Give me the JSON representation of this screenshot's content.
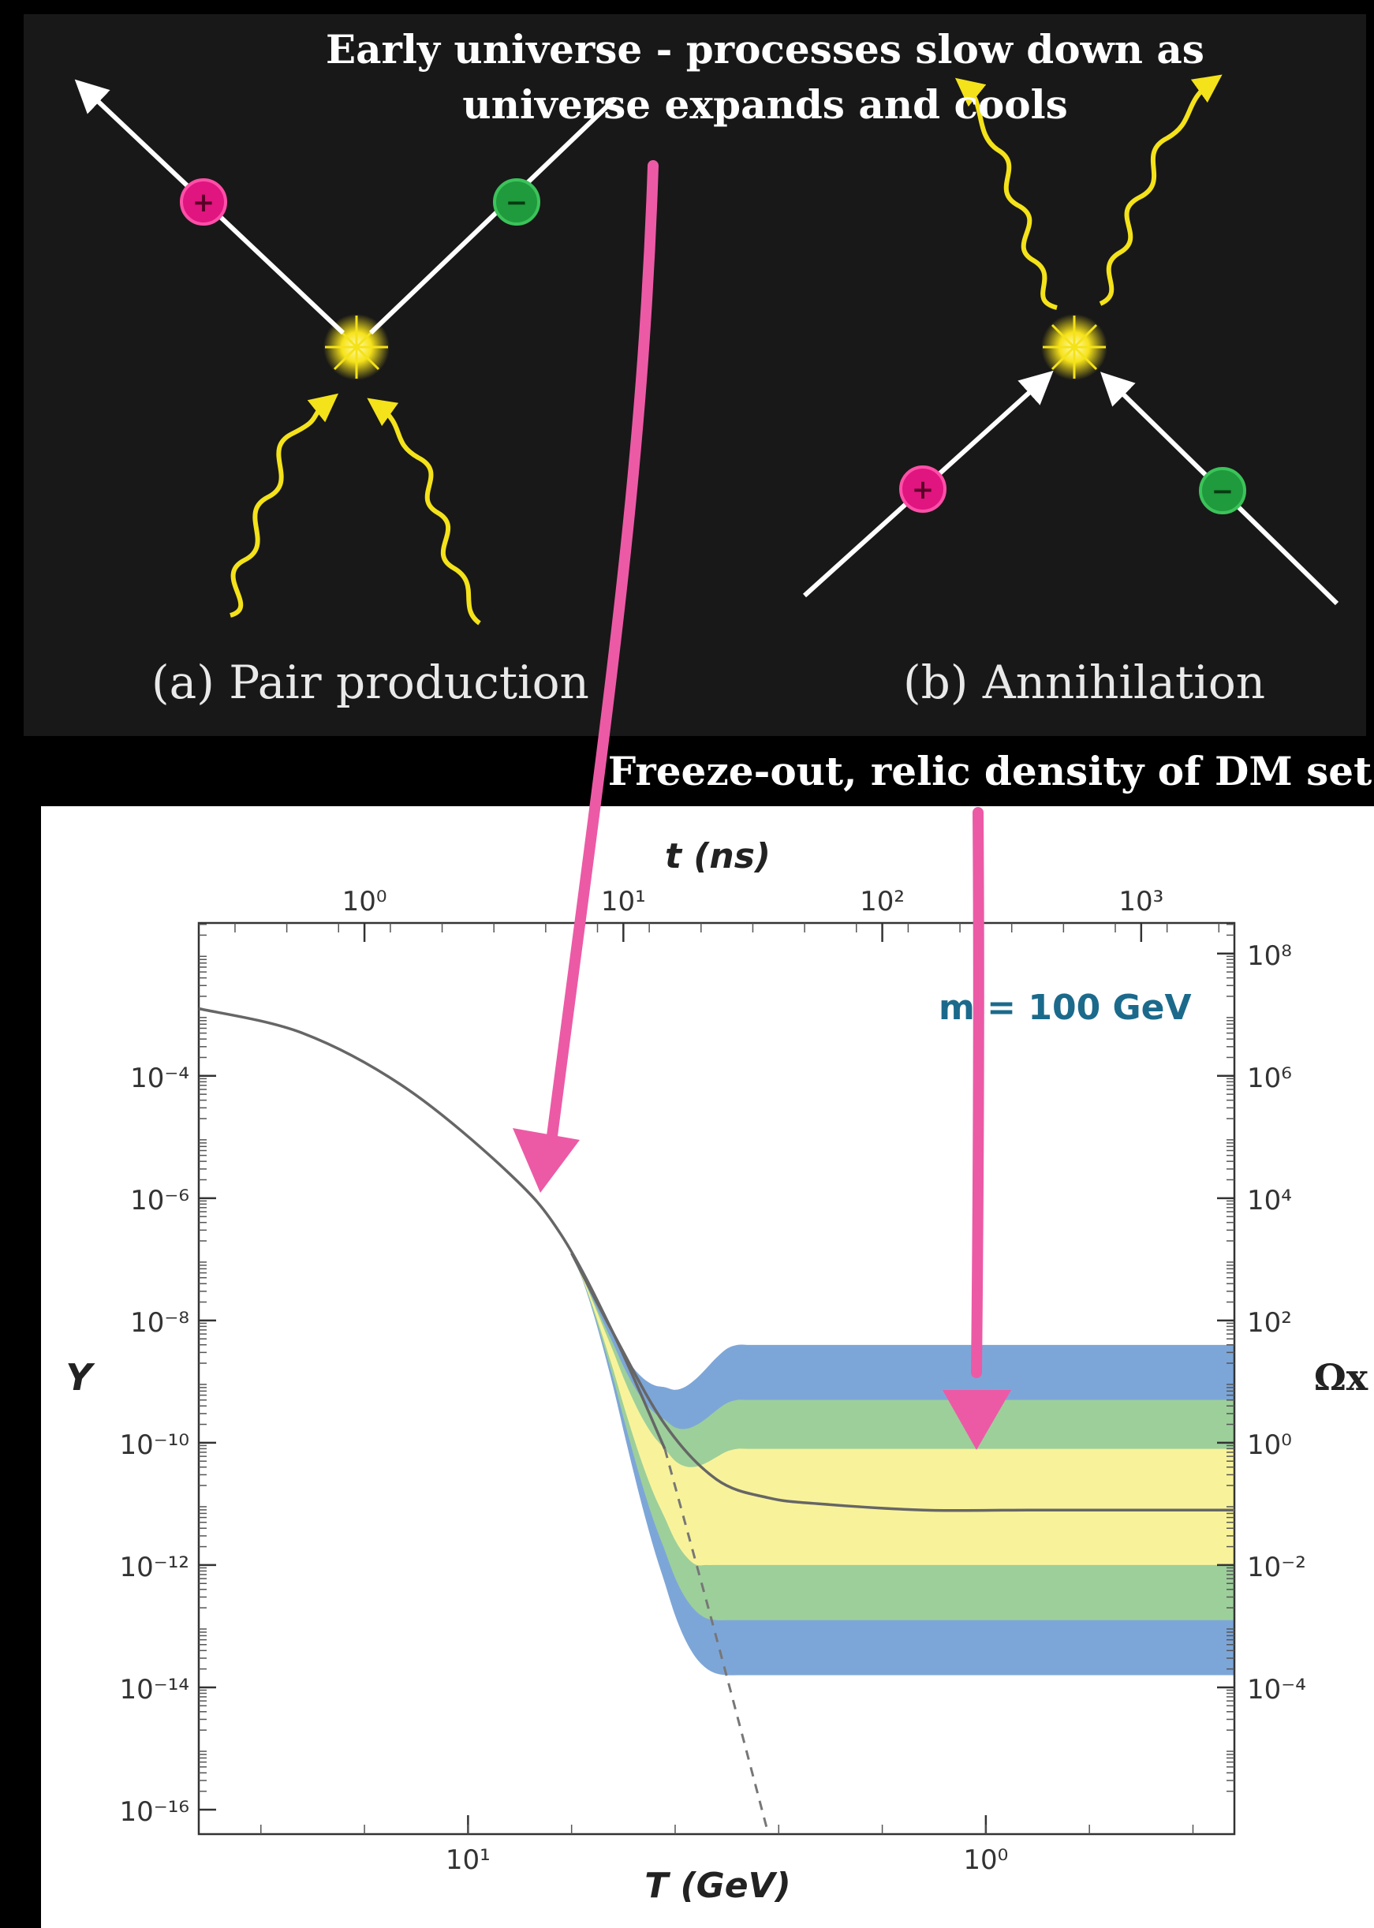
{
  "annotations": {
    "top_line1": "Early universe - processes slow down as",
    "top_line2": "universe expands and cools",
    "freeze_out": "Freeze-out, relic density of DM set"
  },
  "diagrams": {
    "pair_production": {
      "caption": "(a)  Pair production",
      "positron_sign": "+",
      "electron_sign": "−"
    },
    "annihilation": {
      "caption": "(b)  Annihilation",
      "positron_sign": "+",
      "electron_sign": "−"
    }
  },
  "colors": {
    "arrow_pink": "#ec5aa6",
    "photon_yellow": "#f4e21a",
    "positron": "#e0157f",
    "electron": "#1f9a3c",
    "band_blue": "#7da6d8",
    "band_green": "#9dcf9b",
    "band_yellow": "#f8f39a",
    "mass_label": "#1b6a8c"
  },
  "chart_data": {
    "type": "line",
    "title": "",
    "xlabel": "T (GeV)",
    "x_top_label": "t (ns)",
    "ylabel": "Y",
    "y_right_label": "Ωx",
    "y_scale": "log",
    "y_ticks": [
      "10⁻⁴",
      "10⁻⁶",
      "10⁻⁸",
      "10⁻¹⁰",
      "10⁻¹²",
      "10⁻¹⁴",
      "10⁻¹⁶"
    ],
    "y_tick_exponents": [
      -4,
      -6,
      -8,
      -10,
      -12,
      -14,
      -16
    ],
    "y_range_exponent": [
      -16.4,
      -1.5
    ],
    "x_bottom_ticks": [
      "10¹",
      "10⁰"
    ],
    "x_bottom_tick_positions": [
      0.26,
      0.76
    ],
    "x_top_ticks": [
      "10⁰",
      "10¹",
      "10²",
      "10³"
    ],
    "x_top_tick_positions": [
      0.16,
      0.41,
      0.66,
      0.91
    ],
    "y_right_ticks": [
      "10⁸",
      "10⁶",
      "10⁴",
      "10²",
      "10⁰",
      "10⁻²",
      "10⁻⁴"
    ],
    "y_right_tick_exponents": [
      -2,
      -4,
      -6,
      -8,
      -10,
      -12,
      -14
    ],
    "mass_label": "m  = 100 GeV",
    "series": [
      {
        "style": "equilibrium (dashed continuation)",
        "x": [
          0.0,
          0.1,
          0.2,
          0.3,
          0.35,
          0.4,
          0.45,
          0.5,
          0.55
        ],
        "y_exponent": [
          -2.9,
          -3.3,
          -4.2,
          -5.6,
          -6.6,
          -8.2,
          -10.1,
          -13.2,
          -16.4
        ]
      },
      {
        "style": "relic abundance (solid)",
        "x": [
          0.36,
          0.4,
          0.45,
          0.5,
          0.55,
          0.6,
          0.7,
          0.8,
          0.9,
          1.0
        ],
        "y_exponent": [
          -6.9,
          -8.2,
          -9.7,
          -10.6,
          -10.9,
          -11.0,
          -11.1,
          -11.1,
          -11.1,
          -11.1
        ]
      }
    ],
    "bands": [
      {
        "color": "band_blue",
        "upper_exponent": -8.4,
        "lower_exponent": -13.8
      },
      {
        "color": "band_green",
        "upper_exponent": -9.3,
        "lower_exponent": -12.9
      },
      {
        "color": "band_yellow",
        "upper_exponent": -10.1,
        "lower_exponent": -12.0
      }
    ]
  }
}
